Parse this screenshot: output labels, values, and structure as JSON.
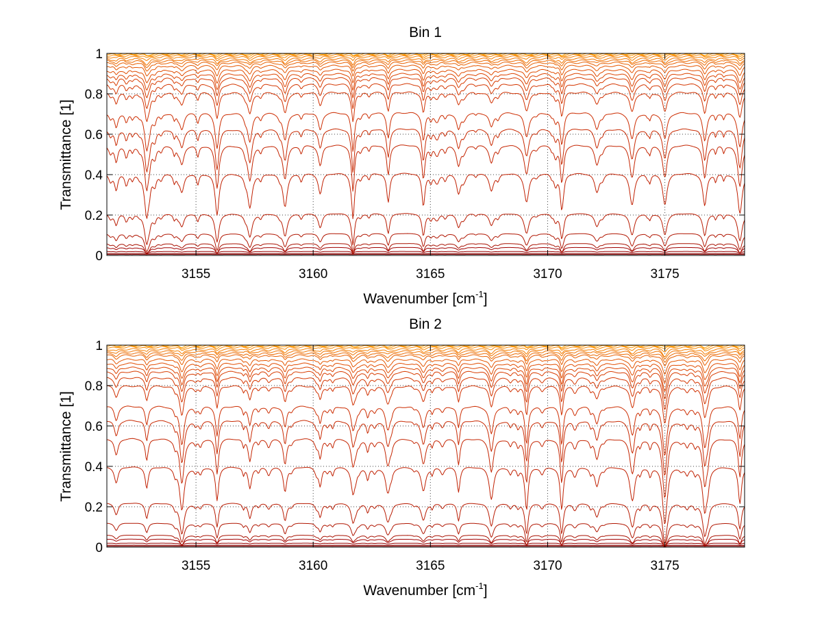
{
  "chart_data": [
    {
      "type": "line",
      "title": "Bin 1",
      "xlabel": "Wavenumber [cm",
      "xlabel_sup": "-1",
      "xlabel_end": "]",
      "ylabel": "Transmittance [1]",
      "xlim": [
        3151.2,
        3178.4
      ],
      "ylim": [
        0,
        1
      ],
      "grid": true,
      "xticks": [
        3155,
        3160,
        3165,
        3170,
        3175
      ],
      "xtick_labels": [
        "3155",
        "3160",
        "3165",
        "3170",
        "3175"
      ],
      "yticks": [
        0,
        0.2,
        0.4,
        0.6,
        0.8,
        1
      ],
      "ytick_labels": [
        "0",
        "0.2",
        "0.4",
        "0.6",
        "0.8",
        "1"
      ],
      "line_centers": [
        3151.6,
        3152.9,
        3154.4,
        3155.9,
        3157.3,
        3158.8,
        3160.3,
        3161.7,
        3163.2,
        3164.7,
        3166.2,
        3167.6,
        3169.1,
        3170.6,
        3172.1,
        3173.6,
        3175.0,
        3176.7,
        3178.2
      ],
      "series_baselines": [
        0.0,
        0.005,
        0.01,
        0.02,
        0.04,
        0.06,
        0.11,
        0.21,
        0.41,
        0.55,
        0.63,
        0.71,
        0.81,
        0.85,
        0.88,
        0.9,
        0.92,
        0.94,
        0.955,
        0.965,
        0.975,
        0.985,
        0.992,
        0.997,
        1.0
      ],
      "series_colors": [
        "#7a0000",
        "#7f0000",
        "#8b0000",
        "#990000",
        "#a00000",
        "#a81000",
        "#b01500",
        "#b81a00",
        "#c01f00",
        "#c42400",
        "#c82800",
        "#cc2c00",
        "#d03000",
        "#d43600",
        "#d83c00",
        "#dc4400",
        "#e04c00",
        "#e45600",
        "#e86000",
        "#ec6a00",
        "#f07400",
        "#f47e00",
        "#f88800",
        "#fc9400",
        "#ffa000"
      ]
    },
    {
      "type": "line",
      "title": "Bin 2",
      "xlabel": "Wavenumber [cm",
      "xlabel_sup": "-1",
      "xlabel_end": "]",
      "ylabel": "Transmittance [1]",
      "xlim": [
        3151.2,
        3178.4
      ],
      "ylim": [
        0,
        1
      ],
      "grid": true,
      "xticks": [
        3155,
        3160,
        3165,
        3170,
        3175
      ],
      "xtick_labels": [
        "3155",
        "3160",
        "3165",
        "3170",
        "3175"
      ],
      "yticks": [
        0,
        0.2,
        0.4,
        0.6,
        0.8,
        1
      ],
      "ytick_labels": [
        "0",
        "0.2",
        "0.4",
        "0.6",
        "0.8",
        "1"
      ],
      "line_centers": [
        3151.6,
        3152.9,
        3154.4,
        3155.9,
        3157.3,
        3158.8,
        3160.3,
        3161.7,
        3163.2,
        3164.7,
        3166.2,
        3167.6,
        3169.1,
        3170.6,
        3172.1,
        3173.6,
        3175.0,
        3176.7,
        3178.2
      ],
      "series_baselines": [
        0.0,
        0.005,
        0.01,
        0.02,
        0.04,
        0.06,
        0.12,
        0.22,
        0.4,
        0.54,
        0.63,
        0.7,
        0.8,
        0.84,
        0.87,
        0.89,
        0.91,
        0.93,
        0.95,
        0.96,
        0.97,
        0.98,
        0.99,
        0.996,
        1.0
      ],
      "series_colors": [
        "#7a0000",
        "#7f0000",
        "#8b0000",
        "#990000",
        "#a00000",
        "#a81000",
        "#b01500",
        "#b81a00",
        "#c01f00",
        "#c42400",
        "#c82800",
        "#cc2c00",
        "#d03000",
        "#d43600",
        "#d83c00",
        "#dc4400",
        "#e04c00",
        "#e45600",
        "#e86000",
        "#ec6a00",
        "#f07400",
        "#f47e00",
        "#f88800",
        "#fc9400",
        "#ffa000"
      ]
    }
  ]
}
